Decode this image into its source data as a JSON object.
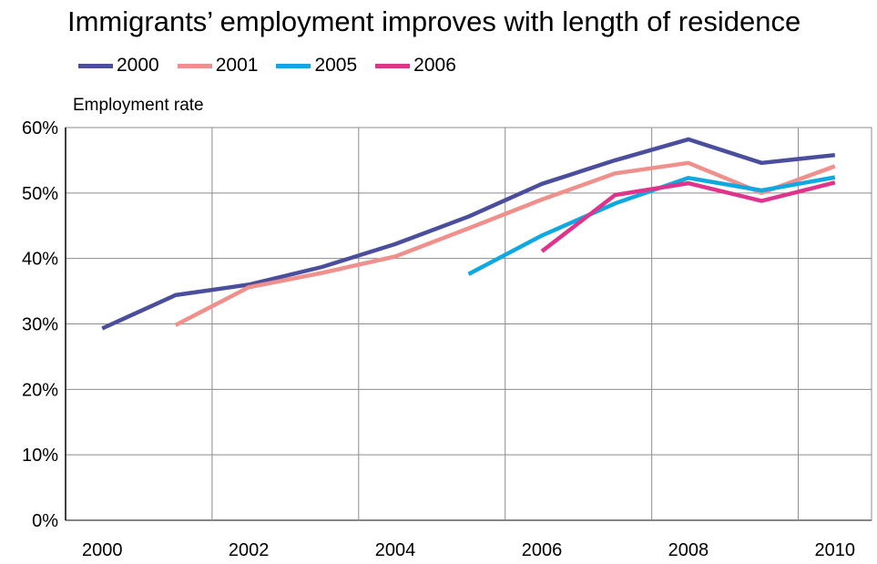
{
  "chart_data": {
    "type": "line",
    "title": "Immigrants’ employment improves with length of residence",
    "ylabel": "Employment rate",
    "xlabel": "",
    "x_ticks": [
      "2000",
      "2002",
      "2004",
      "2006",
      "2008",
      "2010"
    ],
    "y_ticks": [
      "0%",
      "10%",
      "20%",
      "30%",
      "40%",
      "50%",
      "60%"
    ],
    "xlim": [
      1999.5,
      2010.5
    ],
    "ylim": [
      0,
      60
    ],
    "grid": true,
    "legend_position": "top-left",
    "series": [
      {
        "name": "2000",
        "color": "#4B4E9C",
        "x": [
          2000,
          2001,
          2002,
          2003,
          2004,
          2005,
          2006,
          2007,
          2008,
          2009,
          2010
        ],
        "values": [
          29.3,
          34.4,
          36.0,
          38.7,
          42.2,
          46.4,
          51.4,
          55.0,
          58.2,
          54.6,
          55.8
        ]
      },
      {
        "name": "2001",
        "color": "#F0908C",
        "x": [
          2001,
          2002,
          2003,
          2004,
          2005,
          2006,
          2007,
          2008,
          2009,
          2010
        ],
        "values": [
          29.8,
          35.6,
          37.8,
          40.3,
          44.6,
          49.0,
          53.0,
          54.6,
          50.0,
          54.1
        ]
      },
      {
        "name": "2005",
        "color": "#10A8E0",
        "x": [
          2005,
          2006,
          2007,
          2008,
          2009,
          2010
        ],
        "values": [
          37.6,
          43.5,
          48.4,
          52.3,
          50.4,
          52.4
        ]
      },
      {
        "name": "2006",
        "color": "#E0338C",
        "x": [
          2006,
          2007,
          2008,
          2009,
          2010
        ],
        "values": [
          41.1,
          49.7,
          51.5,
          48.8,
          51.6
        ]
      }
    ]
  }
}
